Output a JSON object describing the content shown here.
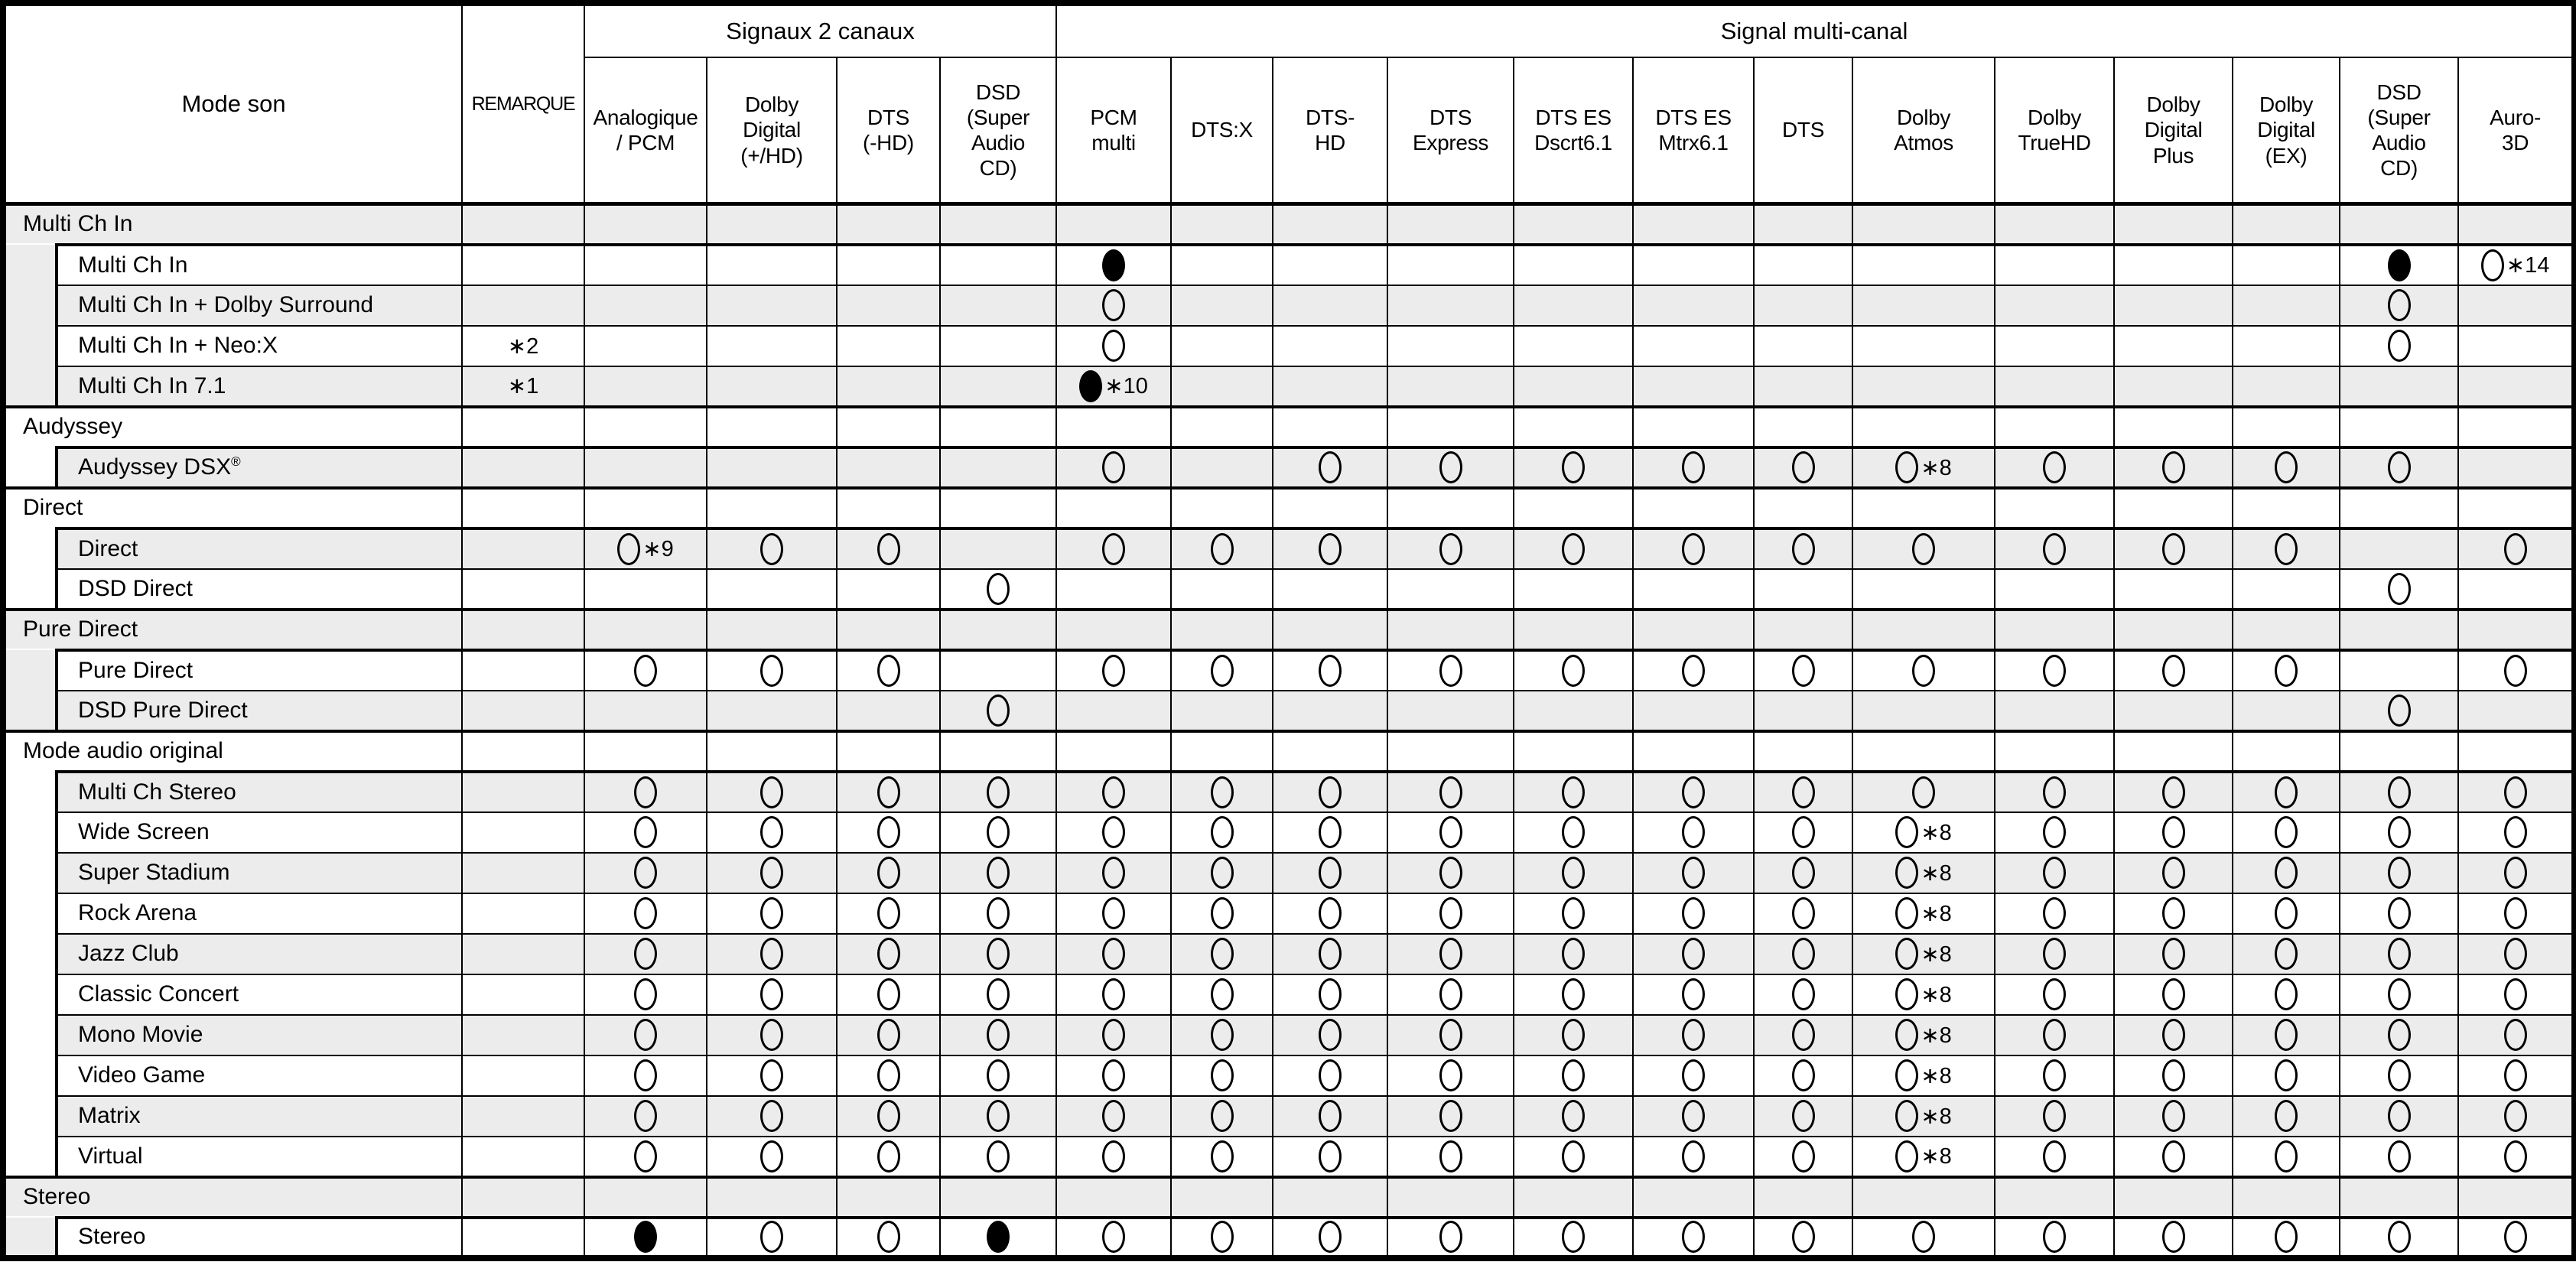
{
  "table": {
    "corner_header": "Mode son",
    "remark_header": "REMARQUE",
    "groups": [
      {
        "label": "Signaux 2 canaux",
        "span": 4
      },
      {
        "label": "Signal multi-canal",
        "span": 13
      }
    ],
    "columns": [
      {
        "id": "analogique-pcm",
        "label": "Analogique\n/ PCM"
      },
      {
        "id": "dolby-digital-plus-hd",
        "label": "Dolby\nDigital\n(+/HD)"
      },
      {
        "id": "dts-minus-hd",
        "label": "DTS\n(-HD)"
      },
      {
        "id": "dsd-super-audio-cd-2ch",
        "label": "DSD\n(Super\nAudio\nCD)"
      },
      {
        "id": "pcm-multi",
        "label": "PCM\nmulti"
      },
      {
        "id": "dts-x",
        "label": "DTS:X"
      },
      {
        "id": "dts-hd",
        "label": "DTS-\nHD"
      },
      {
        "id": "dts-express",
        "label": "DTS\nExpress"
      },
      {
        "id": "dts-es-dscrt6-1",
        "label": "DTS ES\nDscrt6.1"
      },
      {
        "id": "dts-es-mtrx6-1",
        "label": "DTS ES\nMtrx6.1"
      },
      {
        "id": "dts",
        "label": "DTS"
      },
      {
        "id": "dolby-atmos",
        "label": "Dolby\nAtmos"
      },
      {
        "id": "dolby-truehd",
        "label": "Dolby\nTrueHD"
      },
      {
        "id": "dolby-digital-plus",
        "label": "Dolby\nDigital\nPlus"
      },
      {
        "id": "dolby-digital-ex",
        "label": "Dolby\nDigital\n(EX)"
      },
      {
        "id": "dsd-super-audio-cd-multi",
        "label": "DSD\n(Super\nAudio\nCD)"
      },
      {
        "id": "auro-3d",
        "label": "Auro-\n3D"
      }
    ],
    "rows": [
      {
        "type": "section",
        "label": "Multi Ch In"
      },
      {
        "type": "data",
        "label": "Multi Ch In",
        "remark": "",
        "cells": [
          "",
          "",
          "",
          "",
          "●",
          "",
          "",
          "",
          "",
          "",
          "",
          "",
          "",
          "",
          "",
          "●",
          "○∗14"
        ]
      },
      {
        "type": "data",
        "label": "Multi Ch In + Dolby Surround",
        "remark": "",
        "cells": [
          "",
          "",
          "",
          "",
          "○",
          "",
          "",
          "",
          "",
          "",
          "",
          "",
          "",
          "",
          "",
          "○",
          ""
        ]
      },
      {
        "type": "data",
        "label": "Multi Ch In + Neo:X",
        "remark": "∗2",
        "cells": [
          "",
          "",
          "",
          "",
          "○",
          "",
          "",
          "",
          "",
          "",
          "",
          "",
          "",
          "",
          "",
          "○",
          ""
        ]
      },
      {
        "type": "data",
        "label": "Multi Ch In 7.1",
        "remark": "∗1",
        "cells": [
          "",
          "",
          "",
          "",
          "●∗10",
          "",
          "",
          "",
          "",
          "",
          "",
          "",
          "",
          "",
          "",
          "",
          ""
        ]
      },
      {
        "type": "section",
        "label": "Audyssey"
      },
      {
        "type": "data",
        "label": "Audyssey DSX",
        "label_sup": "®",
        "remark": "",
        "cells": [
          "",
          "",
          "",
          "",
          "○",
          "",
          "○",
          "○",
          "○",
          "○",
          "○",
          "○∗8",
          "○",
          "○",
          "○",
          "○",
          ""
        ]
      },
      {
        "type": "section",
        "label": "Direct"
      },
      {
        "type": "data",
        "label": "Direct",
        "remark": "",
        "cells": [
          "○∗9",
          "○",
          "○",
          "",
          "○",
          "○",
          "○",
          "○",
          "○",
          "○",
          "○",
          "○",
          "○",
          "○",
          "○",
          "",
          "○"
        ]
      },
      {
        "type": "data",
        "label": "DSD Direct",
        "remark": "",
        "cells": [
          "",
          "",
          "",
          "○",
          "",
          "",
          "",
          "",
          "",
          "",
          "",
          "",
          "",
          "",
          "",
          "○",
          ""
        ]
      },
      {
        "type": "section",
        "label": "Pure Direct"
      },
      {
        "type": "data",
        "label": "Pure Direct",
        "remark": "",
        "cells": [
          "○",
          "○",
          "○",
          "",
          "○",
          "○",
          "○",
          "○",
          "○",
          "○",
          "○",
          "○",
          "○",
          "○",
          "○",
          "",
          "○"
        ]
      },
      {
        "type": "data",
        "label": "DSD Pure Direct",
        "remark": "",
        "cells": [
          "",
          "",
          "",
          "○",
          "",
          "",
          "",
          "",
          "",
          "",
          "",
          "",
          "",
          "",
          "",
          "○",
          ""
        ]
      },
      {
        "type": "section",
        "label": "Mode audio original"
      },
      {
        "type": "data",
        "label": "Multi Ch Stereo",
        "remark": "",
        "cells": [
          "○",
          "○",
          "○",
          "○",
          "○",
          "○",
          "○",
          "○",
          "○",
          "○",
          "○",
          "○",
          "○",
          "○",
          "○",
          "○",
          "○"
        ]
      },
      {
        "type": "data",
        "label": "Wide Screen",
        "remark": "",
        "cells": [
          "○",
          "○",
          "○",
          "○",
          "○",
          "○",
          "○",
          "○",
          "○",
          "○",
          "○",
          "○∗8",
          "○",
          "○",
          "○",
          "○",
          "○"
        ]
      },
      {
        "type": "data",
        "label": "Super Stadium",
        "remark": "",
        "cells": [
          "○",
          "○",
          "○",
          "○",
          "○",
          "○",
          "○",
          "○",
          "○",
          "○",
          "○",
          "○∗8",
          "○",
          "○",
          "○",
          "○",
          "○"
        ]
      },
      {
        "type": "data",
        "label": "Rock Arena",
        "remark": "",
        "cells": [
          "○",
          "○",
          "○",
          "○",
          "○",
          "○",
          "○",
          "○",
          "○",
          "○",
          "○",
          "○∗8",
          "○",
          "○",
          "○",
          "○",
          "○"
        ]
      },
      {
        "type": "data",
        "label": "Jazz Club",
        "remark": "",
        "cells": [
          "○",
          "○",
          "○",
          "○",
          "○",
          "○",
          "○",
          "○",
          "○",
          "○",
          "○",
          "○∗8",
          "○",
          "○",
          "○",
          "○",
          "○"
        ]
      },
      {
        "type": "data",
        "label": "Classic Concert",
        "remark": "",
        "cells": [
          "○",
          "○",
          "○",
          "○",
          "○",
          "○",
          "○",
          "○",
          "○",
          "○",
          "○",
          "○∗8",
          "○",
          "○",
          "○",
          "○",
          "○"
        ]
      },
      {
        "type": "data",
        "label": "Mono Movie",
        "remark": "",
        "cells": [
          "○",
          "○",
          "○",
          "○",
          "○",
          "○",
          "○",
          "○",
          "○",
          "○",
          "○",
          "○∗8",
          "○",
          "○",
          "○",
          "○",
          "○"
        ]
      },
      {
        "type": "data",
        "label": "Video Game",
        "remark": "",
        "cells": [
          "○",
          "○",
          "○",
          "○",
          "○",
          "○",
          "○",
          "○",
          "○",
          "○",
          "○",
          "○∗8",
          "○",
          "○",
          "○",
          "○",
          "○"
        ]
      },
      {
        "type": "data",
        "label": "Matrix",
        "remark": "",
        "cells": [
          "○",
          "○",
          "○",
          "○",
          "○",
          "○",
          "○",
          "○",
          "○",
          "○",
          "○",
          "○∗8",
          "○",
          "○",
          "○",
          "○",
          "○"
        ]
      },
      {
        "type": "data",
        "label": "Virtual",
        "remark": "",
        "cells": [
          "○",
          "○",
          "○",
          "○",
          "○",
          "○",
          "○",
          "○",
          "○",
          "○",
          "○",
          "○∗8",
          "○",
          "○",
          "○",
          "○",
          "○"
        ]
      },
      {
        "type": "section",
        "label": "Stereo"
      },
      {
        "type": "data",
        "label": "Stereo",
        "remark": "",
        "cells": [
          "●",
          "○",
          "○",
          "●",
          "○",
          "○",
          "○",
          "○",
          "○",
          "○",
          "○",
          "○",
          "○",
          "○",
          "○",
          "○",
          "○"
        ]
      }
    ]
  }
}
